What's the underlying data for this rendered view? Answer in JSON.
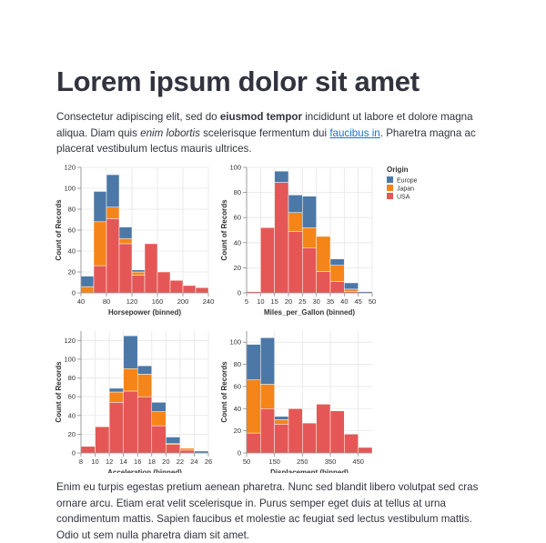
{
  "header": {
    "title": "Lorem ipsum dolor sit amet"
  },
  "intro": [
    "Consectetur adipiscing elit, sed do ",
    "eiusmod tempor",
    " incididunt ut labore et dolore magna aliqua. Diam quis ",
    "enim lobortis",
    " scelerisque fermentum dui ",
    "faucibus in",
    ". Pharetra magna ac placerat vestibulum lectus mauris ultrices."
  ],
  "legend": {
    "title": "Origin",
    "entries": [
      {
        "name": "Europe",
        "color": "#4c78a8"
      },
      {
        "name": "Japan",
        "color": "#f58518"
      },
      {
        "name": "USA",
        "color": "#e45756"
      }
    ]
  },
  "chart_data": [
    {
      "type": "histogram",
      "x_label": "Horsepower (binned)",
      "y_label": "Count of Records",
      "bins": [
        40,
        60,
        80,
        100,
        120,
        140,
        160,
        180,
        200,
        220,
        240
      ],
      "series": [
        {
          "values": [
            10,
            29,
            31,
            11,
            2,
            0,
            0,
            0,
            0,
            0
          ]
        },
        {
          "values": [
            6,
            42,
            11,
            5,
            3,
            0,
            0,
            0,
            0,
            0
          ]
        },
        {
          "values": [
            0,
            26,
            71,
            47,
            17,
            47,
            20,
            12,
            7,
            5
          ]
        }
      ],
      "xlim": [
        40,
        240
      ],
      "xticks": [
        40,
        80,
        120,
        160,
        200,
        240
      ],
      "ylim": [
        0,
        120
      ],
      "yticks": [
        0,
        20,
        40,
        60,
        80,
        100,
        120
      ],
      "grid": true
    },
    {
      "type": "histogram",
      "x_label": "Miles_per_Gallon (binned)",
      "y_label": "Count of Records",
      "bins": [
        5,
        10,
        15,
        20,
        25,
        30,
        35,
        40,
        45,
        50
      ],
      "series": [
        {
          "values": [
            0,
            0,
            9,
            14,
            25,
            0,
            5,
            5,
            1
          ]
        },
        {
          "values": [
            0,
            0,
            0,
            15,
            16,
            28,
            13,
            2,
            0
          ]
        },
        {
          "values": [
            1,
            52,
            88,
            49,
            36,
            17,
            9,
            1,
            0
          ]
        }
      ],
      "xlim": [
        5,
        50
      ],
      "xticks": [
        5,
        10,
        15,
        20,
        25,
        30,
        35,
        40,
        45,
        50
      ],
      "ylim": [
        0,
        100
      ],
      "yticks": [
        0,
        20,
        40,
        60,
        80,
        100
      ],
      "grid": true
    },
    {
      "type": "histogram",
      "x_label": "Acceleration (binned)",
      "y_label": "Count of Records",
      "bins": [
        8,
        10,
        12,
        14,
        16,
        18,
        20,
        22,
        24,
        26
      ],
      "series": [
        {
          "values": [
            0,
            0,
            4,
            35,
            9,
            10,
            7,
            0,
            2
          ]
        },
        {
          "values": [
            0,
            0,
            11,
            24,
            24,
            15,
            1,
            2,
            0
          ]
        },
        {
          "values": [
            7,
            28,
            54,
            66,
            60,
            29,
            9,
            3,
            0
          ]
        }
      ],
      "xlim": [
        8,
        26
      ],
      "xticks": [
        8,
        10,
        12,
        14,
        16,
        18,
        20,
        22,
        24,
        26
      ],
      "ylim": [
        0,
        130
      ],
      "yticks": [
        0,
        20,
        40,
        60,
        80,
        100,
        120
      ],
      "grid": true
    },
    {
      "type": "histogram",
      "x_label": "Displacement (binned)",
      "y_label": "Count of Records",
      "bins": [
        50,
        100,
        150,
        200,
        250,
        300,
        350,
        400,
        450,
        500
      ],
      "series": [
        {
          "values": [
            32,
            42,
            3,
            0,
            0,
            0,
            0,
            0,
            0
          ]
        },
        {
          "values": [
            48,
            22,
            4,
            0,
            0,
            0,
            0,
            0,
            0
          ]
        },
        {
          "values": [
            18,
            40,
            26,
            40,
            27,
            44,
            38,
            17,
            5
          ]
        }
      ],
      "xlim": [
        50,
        500
      ],
      "xticks": [
        50,
        150,
        250,
        350,
        450
      ],
      "ylim": [
        0,
        110
      ],
      "yticks": [
        0,
        20,
        40,
        60,
        80,
        100
      ],
      "grid": true
    }
  ],
  "outro": "Enim eu turpis egestas pretium aenean pharetra. Nunc sed blandit libero volutpat sed cras ornare arcu. Etiam erat velit scelerisque in. Purus semper eget duis at tellus at urna condimentum mattis. Sapien faucibus et molestie ac feugiat sed lectus vestibulum mattis. Odio ut sem nulla pharetra diam sit amet."
}
